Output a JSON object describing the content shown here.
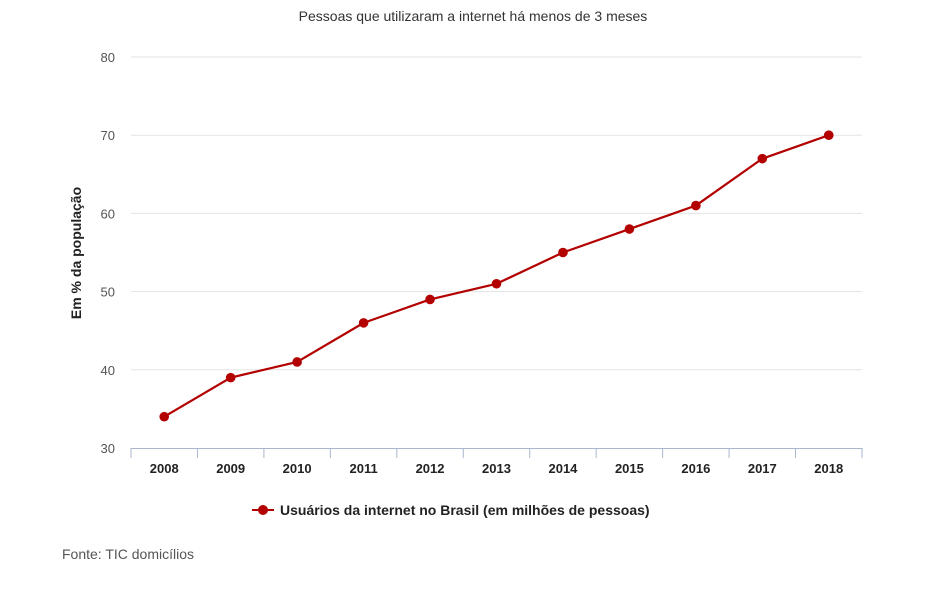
{
  "chart_data": {
    "type": "line",
    "title": "Pessoas que utilizaram a internet há menos de 3 meses",
    "xlabel": "",
    "ylabel": "Em % da população",
    "categories": [
      "2008",
      "2009",
      "2010",
      "2011",
      "2012",
      "2013",
      "2014",
      "2015",
      "2016",
      "2017",
      "2018"
    ],
    "series": [
      {
        "name": "Usuários da internet no Brasil (em milhões de pessoas)",
        "values": [
          34,
          39,
          41,
          46,
          49,
          51,
          55,
          58,
          61,
          67,
          70
        ],
        "color": "#b30000"
      }
    ],
    "yticks": [
      30,
      40,
      50,
      60,
      70,
      80
    ],
    "ylim": [
      30,
      80
    ],
    "grid": true,
    "legend_position": "bottom"
  },
  "source": "Fonte: TIC domicílios"
}
